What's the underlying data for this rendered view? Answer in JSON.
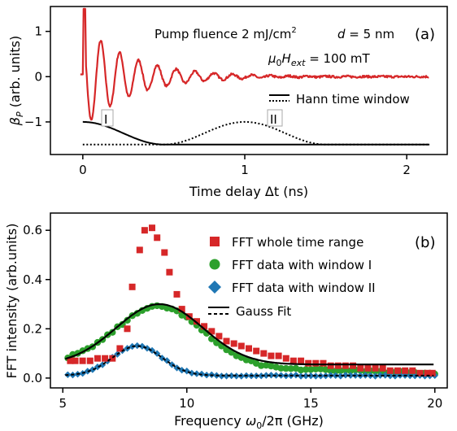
{
  "chart_data": [
    {
      "type": "line",
      "panel_label": "(a)",
      "xlabel": "Time delay Δt (ns)",
      "ylabel_main": "β",
      "ylabel_sub": "P",
      "ylabel_rest": " (arb. units)",
      "xlim": [
        -0.2,
        2.25
      ],
      "ylim": [
        -1.72,
        1.55
      ],
      "xticks": [
        0,
        1,
        2
      ],
      "yticks": [
        -1,
        0,
        1
      ],
      "grid": false,
      "annotations": {
        "pump_a": "Pump fluence 2 mJ/cm",
        "pump_sup": "2",
        "d_italic": "d",
        "d_rest": " = 5 nm",
        "field_mu": "μ",
        "field_0": "0",
        "field_H": "H",
        "field_ext": "ext",
        "field_rest": " = 100 mT",
        "window_I": "I",
        "window_II": "II"
      },
      "legend": {
        "position": "right",
        "entries": [
          "Hann time window"
        ]
      },
      "signal": {
        "color": "#d62728",
        "x_start": 0.0,
        "x_end": 2.14,
        "pre_zero_level": 0.05,
        "baseline": 0.0,
        "initial_amplitude": 1.15,
        "decay_time_ns": 0.3,
        "frequency_GHz": 8.6,
        "peak_near_zero": 1.5
      },
      "window_I": {
        "x_start": 0.0,
        "x_end": 0.5,
        "y_low": -1.5,
        "y_high": -1.0,
        "style": "solid"
      },
      "window_II": {
        "x_start": 0.0,
        "x_end": 1.5,
        "peak_x": 1.0,
        "y_low": -1.5,
        "y_high": -1.0,
        "style": "dotted"
      }
    },
    {
      "type": "scatter",
      "panel_label": "(b)",
      "xlabel_main": "Frequency ",
      "xlabel_omega": "ω",
      "xlabel_0": "0",
      "xlabel_rest": "/2π (GHz)",
      "ylabel": "FFT intensity (arb.units)",
      "xlim": [
        4.5,
        20.5
      ],
      "ylim": [
        -0.04,
        0.67
      ],
      "xticks": [
        5,
        10,
        15,
        20
      ],
      "yticks": [
        0.0,
        0.2,
        0.4,
        0.6
      ],
      "ytick_labels": [
        "0.0",
        "0.2",
        "0.4",
        "0.6"
      ],
      "grid": false,
      "legend": {
        "position": "top-right",
        "entries": [
          "FFT whole time range",
          "FFT data with window I",
          "FFT data with window II",
          "Gauss Fit"
        ]
      },
      "series": [
        {
          "name": "FFT whole time range",
          "marker": "square",
          "color": "#d62728",
          "x": [
            5.3,
            5.5,
            5.8,
            6.1,
            6.4,
            6.7,
            7.0,
            7.3,
            7.6,
            7.8,
            8.1,
            8.3,
            8.6,
            8.8,
            9.1,
            9.3,
            9.6,
            9.8,
            10.1,
            10.4,
            10.7,
            11.0,
            11.3,
            11.6,
            11.9,
            12.2,
            12.5,
            12.8,
            13.1,
            13.4,
            13.7,
            14.0,
            14.3,
            14.6,
            14.9,
            15.2,
            15.5,
            15.8,
            16.1,
            16.4,
            16.7,
            17.0,
            17.3,
            17.6,
            17.9,
            18.2,
            18.5,
            18.8,
            19.1,
            19.4,
            19.7,
            19.9
          ],
          "y": [
            0.07,
            0.07,
            0.07,
            0.07,
            0.08,
            0.08,
            0.08,
            0.12,
            0.2,
            0.37,
            0.52,
            0.6,
            0.61,
            0.57,
            0.51,
            0.43,
            0.34,
            0.28,
            0.25,
            0.23,
            0.21,
            0.19,
            0.17,
            0.15,
            0.14,
            0.13,
            0.12,
            0.11,
            0.1,
            0.09,
            0.09,
            0.08,
            0.07,
            0.07,
            0.06,
            0.06,
            0.06,
            0.05,
            0.05,
            0.05,
            0.05,
            0.04,
            0.04,
            0.04,
            0.04,
            0.03,
            0.03,
            0.03,
            0.03,
            0.02,
            0.02,
            0.02
          ]
        },
        {
          "name": "FFT data with window I",
          "marker": "circle",
          "color": "#2ca02c",
          "x_start": 5.2,
          "x_end": 20.0,
          "x_step": 0.2,
          "model": {
            "amplitude": 0.24,
            "center": 8.9,
            "sigma": 1.75,
            "offset": 0.06,
            "tail": 0.05,
            "tail_end": 0.02
          }
        },
        {
          "name": "FFT data with window II",
          "marker": "diamond",
          "color": "#1f77b4",
          "x_start": 5.2,
          "x_end": 20.0,
          "x_step": 0.2,
          "model": {
            "amplitude": 0.12,
            "center": 8.0,
            "sigma": 1.0,
            "offset": 0.01
          }
        },
        {
          "name": "Gauss Fit",
          "style": "solid+dashed",
          "color": "#000000",
          "fits": [
            {
              "amplitude": 0.245,
              "center": 8.9,
              "sigma": 1.75,
              "offset": 0.055
            },
            {
              "amplitude": 0.12,
              "center": 8.0,
              "sigma": 1.0,
              "offset": 0.01
            }
          ]
        }
      ]
    }
  ]
}
